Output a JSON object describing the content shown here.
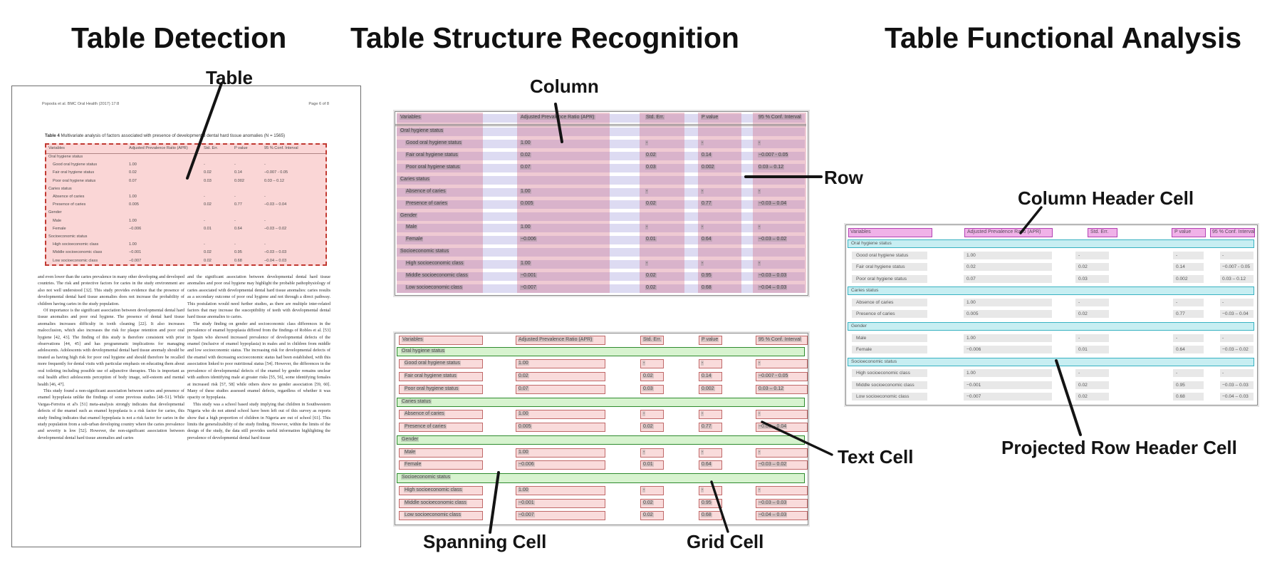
{
  "panels": {
    "detection_title": "Table Detection",
    "structure_title": "Table Structure Recognition",
    "functional_title": "Table Functional Analysis"
  },
  "annotations": {
    "table": "Table",
    "column": "Column",
    "row": "Row",
    "text_cell": "Text Cell",
    "spanning_cell": "Spanning Cell",
    "grid_cell": "Grid Cell",
    "column_header_cell": "Column Header Cell",
    "projected_row_header_cell": "Projected Row Header Cell"
  },
  "document": {
    "header_left": "Popoola et al. BMC Oral Health  (2017) 17:8",
    "header_right": "Page 6 of 8",
    "caption_label": "Table 4",
    "caption_text": " Multivariate analysis of factors associated with presence of developmental dental hard tissue anomalies (N = 1565)",
    "body_col1": [
      "and even lower than the caries prevalence in many other developing and developed countries. The risk and protective factors for caries in the study environment are also not well understood [32]. This study provides evidence that the presence of developmental dental hard tissue anomalies does not increase the probability of children having caries in the study population.",
      "Of importance is the significant association between developmental dental hard tissue anomalies and poor oral hygiene. The presence of dental hard tissue anomalies increases difficulty in tooth cleaning [22]. It also increases malocclusion, which also increases the risk for plaque retention and poor oral hygiene [42, 43]. The finding of this study is therefore consistent with prior observations [44, 45] and has programmatic implications for managing adolescents. Adolescents with developmental dental hard tissue anomaly should be treated as having high risk for poor oral hygiene and should therefore be recalled more frequently for dental visits with particular emphasis on educating them about oral toileting including possible use of adjunctive therapies. This is important as oral health affect adolescents perception of body image, self-esteem and mental health [46, 47].",
      "This study found a non-significant association between caries and presence of enamel hypoplasia unlike the findings of some previous studies [48–51]. While Vargas-Ferreira et al's [51] meta-analysis strongly indicates that developmental defects of the enamel such as enamel hypoplasia is a risk factor for caries, this study finding indicates that enamel hypoplasia is not a risk factor for caries in the study population from a sub-urban developing country where the caries prevalence and severity is low [52]. However, the non-significant association between developmental dental hard tissue anomalies and caries"
    ],
    "body_col2": [
      "and the significant association between developmental dental hard tissue anomalies and poor oral hygiene may highlight the probable pathophysiology of caries associated with developmental dental hard tissue anomalies: caries results as a secondary outcome of poor oral hygiene and not through a direct pathway. This postulation would need further studies, as there are multiple inter-related factors that may increase the susceptibility of teeth with developmental dental hard tissue anomalies to caries.",
      "The study finding on gender and socioeconomic class differences in the prevalence of enamel hypoplasia differed from the findings of Robles et al. [53] in Spain who showed increased prevalence of developmental defects of the enamel (inclusive of enamel hypoplasia) in males and in children from middle and low socioeconomic status. The increasing risk for developmental defects of the enamel with decreasing socioeconomic status had been established, with this association linked to poor nutritional status [54]. However, the differences in the prevalence of developmental defects of the enamel by gender remains unclear with authors identifying male at greater risks [55, 56], some identifying females at increased risk [57, 58] while others show no gender association [59, 60]. Many of these studies assessed enamel defects, regardless of whether it was opacity or hypoplasia.",
      "This study was a school based study implying that children in Southwestern Nigeria who do not attend school have been left out of this survey as reports show that a high proportion of children in Nigeria are out of school [61]. This limits the generalizability of the study finding. However, within the limits of the design of the study, the data still provides useful information highlighting the prevalence of developmental dental hard tissue"
    ]
  },
  "table_content": {
    "columns": [
      "Variables",
      "Adjusted Prevalence Ratio (APR)",
      "Std. Err.",
      "P value",
      "95 % Conf. Interval"
    ],
    "rows": [
      {
        "type": "section",
        "label": "Oral hygiene status"
      },
      {
        "type": "item",
        "label": "Good oral hygiene status",
        "values": [
          "1.00",
          "-",
          "-",
          "-"
        ]
      },
      {
        "type": "item",
        "label": "Fair oral hygiene status",
        "values": [
          "0.02",
          "0.02",
          "0.14",
          "−0.007 - 0.05"
        ]
      },
      {
        "type": "item",
        "label": "Poor oral hygiene status",
        "values": [
          "0.07",
          "0.03",
          "0.002",
          "0.03 – 0.12"
        ]
      },
      {
        "type": "section",
        "label": "Caries status"
      },
      {
        "type": "item",
        "label": "Absence of caries",
        "values": [
          "1.00",
          "-",
          "-",
          "-"
        ]
      },
      {
        "type": "item",
        "label": "Presence of caries",
        "values": [
          "0.005",
          "0.02",
          "0.77",
          "−0.03 – 0.04"
        ]
      },
      {
        "type": "section",
        "label": "Gender"
      },
      {
        "type": "item",
        "label": "Male",
        "values": [
          "1.00",
          "-",
          "-",
          "-"
        ]
      },
      {
        "type": "item",
        "label": "Female",
        "values": [
          "−0.006",
          "0.01",
          "0.64",
          "−0.03 – 0.02"
        ]
      },
      {
        "type": "section",
        "label": "Socioeconomic status"
      },
      {
        "type": "item",
        "label": "High socioeconomic class",
        "values": [
          "1.00",
          "-",
          "-",
          "-"
        ]
      },
      {
        "type": "item",
        "label": "Middle socioeconomic class",
        "values": [
          "−0.001",
          "0.02",
          "0.95",
          "−0.03 – 0.03"
        ]
      },
      {
        "type": "item",
        "label": "Low socioeconomic class",
        "values": [
          "−0.007",
          "0.02",
          "0.68",
          "−0.04 – 0.03"
        ]
      }
    ]
  },
  "colors": {
    "detection_overlay": "rgba(246,180,180,0.55)",
    "detection_dash": "#c23a32",
    "column_band": "rgba(211,108,134,0.36)",
    "row_band": "#dddbf2",
    "text_highlight": "rgba(125,125,125,0.28)",
    "cell_fill": "#f9dbdb",
    "cell_border": "#c06868",
    "spanning_fill": "#d7f3cf",
    "spanning_border": "#2e8b2e",
    "header_cell_fill": "#f0b2e8",
    "header_cell_border": "#b342b3",
    "projected_fill": "#c7eef2",
    "projected_border": "#38b2c2",
    "value_bar": "#e8e8e8",
    "pointer_line": "#141414"
  }
}
